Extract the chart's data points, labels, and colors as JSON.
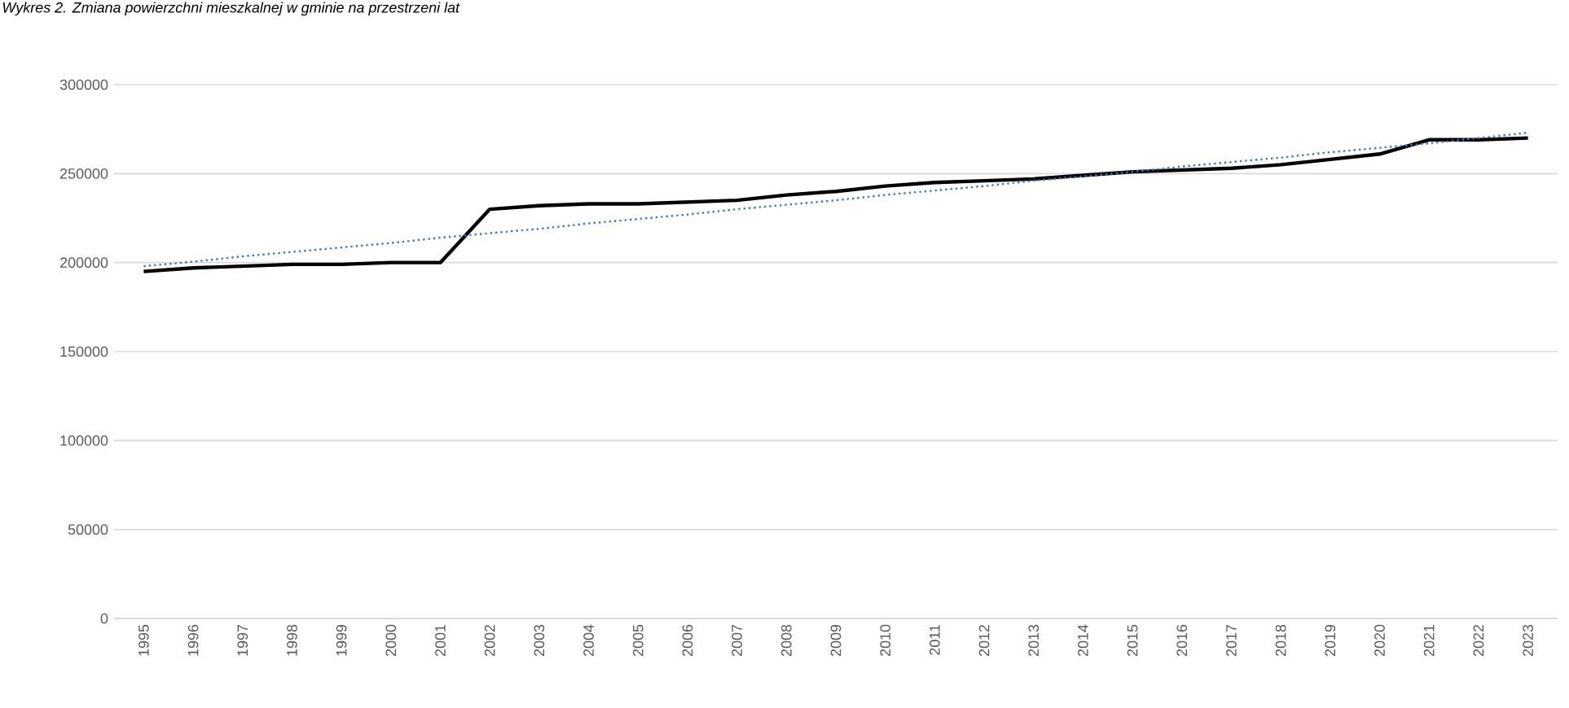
{
  "chart_data": {
    "type": "line",
    "title": "Wykres 2. Zmiana powierzchni mieszkalnej w gminie na przestrzeni lat",
    "categories": [
      "1995",
      "1996",
      "1997",
      "1998",
      "1999",
      "2000",
      "2001",
      "2002",
      "2003",
      "2004",
      "2005",
      "2006",
      "2007",
      "2008",
      "2009",
      "2010",
      "2011",
      "2012",
      "2013",
      "2014",
      "2015",
      "2016",
      "2017",
      "2018",
      "2019",
      "2020",
      "2021",
      "2022",
      "2023"
    ],
    "series": [
      {
        "color": "#000000",
        "line_style": "solid",
        "values": [
          195000,
          197000,
          198000,
          199000,
          199000,
          200000,
          200000,
          230000,
          232000,
          233000,
          233000,
          234000,
          235000,
          238000,
          240000,
          243000,
          245000,
          246000,
          247000,
          249000,
          251000,
          252000,
          253000,
          255000,
          258000,
          261000,
          269000,
          269000,
          270000
        ]
      },
      {
        "color": "#4472c4",
        "line_style": "dotted",
        "values": [
          198000,
          200500,
          203500,
          206000,
          208500,
          211000,
          214000,
          216500,
          219000,
          222000,
          224500,
          227000,
          230000,
          232500,
          235000,
          238000,
          240500,
          243000,
          246000,
          248500,
          251000,
          254000,
          256500,
          259000,
          262000,
          264500,
          267000,
          270000,
          273000
        ]
      }
    ],
    "ylim": [
      0,
      300000
    ],
    "yticks": [
      0,
      50000,
      100000,
      150000,
      200000,
      250000,
      300000
    ],
    "grid": "y",
    "marker": "none"
  }
}
